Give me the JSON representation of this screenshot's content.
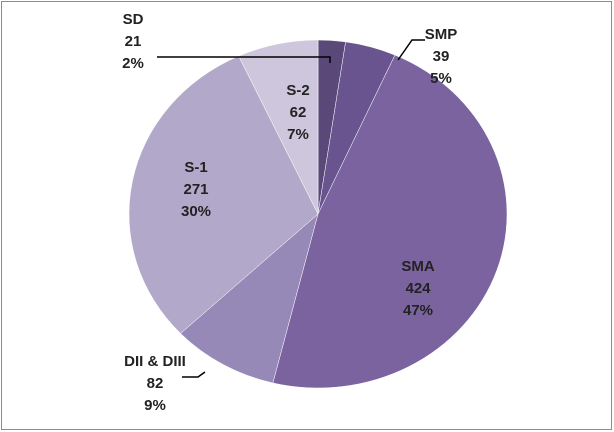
{
  "chart_data": {
    "type": "pie",
    "categories": [
      "SD",
      "SMP",
      "SMA",
      "DII & DIII",
      "S-1",
      "S-2"
    ],
    "values": [
      21,
      39,
      424,
      82,
      271,
      62
    ],
    "percent_labels": [
      "2%",
      "5%",
      "47%",
      "9%",
      "30%",
      "7%"
    ],
    "colors": [
      "#594878",
      "#6a5490",
      "#7b63a0",
      "#9688b7",
      "#b2a8c9",
      "#cdc6dc"
    ]
  }
}
